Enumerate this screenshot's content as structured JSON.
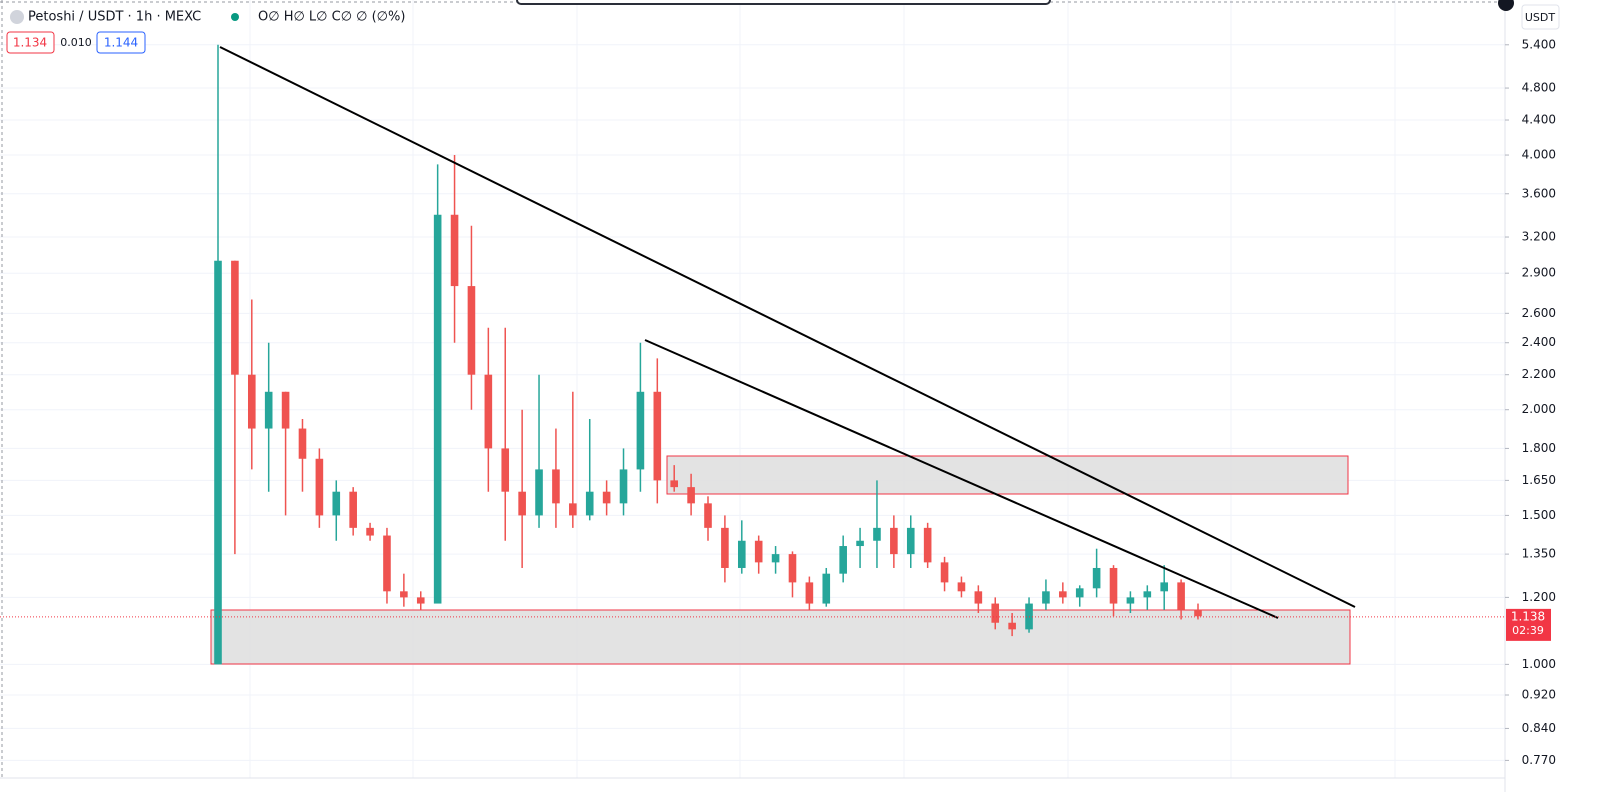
{
  "header": {
    "symbol": "Petoshi / USDT · 1h · MEXC",
    "ohlc": "O∅ H∅ L∅ C∅ ∅ (∅%)",
    "bid": "1.134",
    "spread": "0.010",
    "ask": "1.144",
    "currency": "USDT"
  },
  "chart_data": {
    "type": "candlestick",
    "log_scale": true,
    "grid": true,
    "up_color": "#26a69a",
    "down_color": "#ef5350",
    "ylim": [
      0.74,
      6.1
    ],
    "yticks": [
      {
        "value": 5.4,
        "label": "5.400"
      },
      {
        "value": 4.8,
        "label": "4.800"
      },
      {
        "value": 4.4,
        "label": "4.400"
      },
      {
        "value": 4.0,
        "label": "4.000"
      },
      {
        "value": 3.6,
        "label": "3.600"
      },
      {
        "value": 3.2,
        "label": "3.200"
      },
      {
        "value": 2.9,
        "label": "2.900"
      },
      {
        "value": 2.6,
        "label": "2.600"
      },
      {
        "value": 2.4,
        "label": "2.400"
      },
      {
        "value": 2.2,
        "label": "2.200"
      },
      {
        "value": 2.0,
        "label": "2.000"
      },
      {
        "value": 1.8,
        "label": "1.800"
      },
      {
        "value": 1.65,
        "label": "1.650"
      },
      {
        "value": 1.5,
        "label": "1.500"
      },
      {
        "value": 1.35,
        "label": "1.350"
      },
      {
        "value": 1.2,
        "label": "1.200"
      },
      {
        "value": 1.0,
        "label": "1.000"
      },
      {
        "value": 0.92,
        "label": "0.920"
      },
      {
        "value": 0.84,
        "label": "0.840"
      },
      {
        "value": 0.77,
        "label": "0.770"
      }
    ],
    "last_price": 1.138,
    "countdown": "02:39",
    "candles": [
      [
        1.0,
        5.4,
        1.0,
        3.0
      ],
      [
        3.0,
        3.0,
        1.35,
        2.2
      ],
      [
        2.2,
        2.7,
        1.7,
        1.9
      ],
      [
        1.9,
        2.4,
        1.6,
        2.1
      ],
      [
        2.1,
        2.1,
        1.5,
        1.9
      ],
      [
        1.9,
        1.95,
        1.6,
        1.75
      ],
      [
        1.75,
        1.8,
        1.45,
        1.5
      ],
      [
        1.5,
        1.65,
        1.4,
        1.6
      ],
      [
        1.6,
        1.62,
        1.42,
        1.45
      ],
      [
        1.45,
        1.47,
        1.4,
        1.42
      ],
      [
        1.42,
        1.45,
        1.18,
        1.22
      ],
      [
        1.22,
        1.28,
        1.17,
        1.2
      ],
      [
        1.2,
        1.22,
        1.16,
        1.18
      ],
      [
        1.18,
        3.9,
        1.18,
        3.4
      ],
      [
        3.4,
        4.0,
        2.4,
        2.8
      ],
      [
        2.8,
        3.3,
        2.0,
        2.2
      ],
      [
        2.2,
        2.5,
        1.6,
        1.8
      ],
      [
        1.8,
        2.5,
        1.4,
        1.6
      ],
      [
        1.6,
        2.0,
        1.3,
        1.5
      ],
      [
        1.5,
        2.2,
        1.45,
        1.7
      ],
      [
        1.7,
        1.9,
        1.45,
        1.55
      ],
      [
        1.55,
        2.1,
        1.45,
        1.5
      ],
      [
        1.5,
        1.95,
        1.48,
        1.6
      ],
      [
        1.6,
        1.65,
        1.5,
        1.55
      ],
      [
        1.55,
        1.8,
        1.5,
        1.7
      ],
      [
        1.7,
        2.4,
        1.6,
        2.1
      ],
      [
        2.1,
        2.3,
        1.55,
        1.65
      ],
      [
        1.65,
        1.72,
        1.6,
        1.62
      ],
      [
        1.62,
        1.68,
        1.5,
        1.55
      ],
      [
        1.55,
        1.58,
        1.4,
        1.45
      ],
      [
        1.45,
        1.5,
        1.25,
        1.3
      ],
      [
        1.3,
        1.48,
        1.28,
        1.4
      ],
      [
        1.4,
        1.42,
        1.28,
        1.32
      ],
      [
        1.32,
        1.38,
        1.28,
        1.35
      ],
      [
        1.35,
        1.36,
        1.2,
        1.25
      ],
      [
        1.25,
        1.27,
        1.16,
        1.18
      ],
      [
        1.18,
        1.3,
        1.17,
        1.28
      ],
      [
        1.28,
        1.42,
        1.25,
        1.38
      ],
      [
        1.38,
        1.45,
        1.3,
        1.4
      ],
      [
        1.4,
        1.65,
        1.3,
        1.45
      ],
      [
        1.45,
        1.5,
        1.3,
        1.35
      ],
      [
        1.35,
        1.5,
        1.3,
        1.45
      ],
      [
        1.45,
        1.47,
        1.3,
        1.32
      ],
      [
        1.32,
        1.34,
        1.22,
        1.25
      ],
      [
        1.25,
        1.27,
        1.2,
        1.22
      ],
      [
        1.22,
        1.24,
        1.15,
        1.18
      ],
      [
        1.18,
        1.2,
        1.1,
        1.12
      ],
      [
        1.12,
        1.15,
        1.08,
        1.1
      ],
      [
        1.1,
        1.2,
        1.09,
        1.18
      ],
      [
        1.18,
        1.26,
        1.16,
        1.22
      ],
      [
        1.22,
        1.25,
        1.18,
        1.2
      ],
      [
        1.2,
        1.24,
        1.17,
        1.23
      ],
      [
        1.23,
        1.37,
        1.2,
        1.3
      ],
      [
        1.3,
        1.31,
        1.14,
        1.18
      ],
      [
        1.18,
        1.22,
        1.15,
        1.2
      ],
      [
        1.2,
        1.24,
        1.16,
        1.22
      ],
      [
        1.22,
        1.31,
        1.16,
        1.25
      ],
      [
        1.25,
        1.26,
        1.13,
        1.16
      ],
      [
        1.16,
        1.18,
        1.13,
        1.14
      ]
    ]
  }
}
